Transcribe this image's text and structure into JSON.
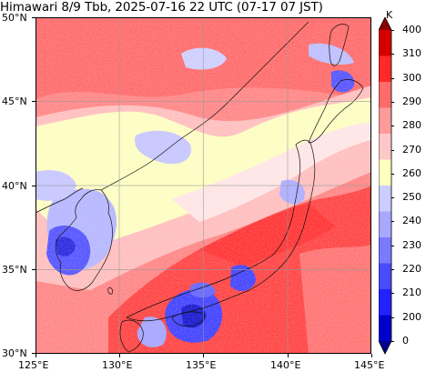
{
  "title": "Himawari 8/9 Tbb, 2025-07-16 22 UTC (07-17 07 JST)",
  "map": {
    "lon_range": [
      125,
      145
    ],
    "lat_range": [
      30,
      50
    ],
    "lon_ticks": [
      "125°E",
      "130°E",
      "135°E",
      "140°E",
      "145°E"
    ],
    "lat_ticks": [
      "30°N",
      "35°N",
      "40°N",
      "45°N",
      "50°N"
    ],
    "gridlines": true,
    "coastlines": true
  },
  "colorbar": {
    "unit": "K",
    "levels": [
      "0",
      "200",
      "210",
      "220",
      "230",
      "240",
      "250",
      "260",
      "270",
      "280",
      "290",
      "300",
      "310",
      "400"
    ],
    "colors": [
      "#00008b",
      "#0000cd",
      "#2222ff",
      "#4a4aff",
      "#7a7aff",
      "#a8a8ff",
      "#ccccff",
      "#ffffc0",
      "#ffc8c8",
      "#ff9a9a",
      "#ff6a6a",
      "#ff2a2a",
      "#d40000",
      "#8b0000"
    ],
    "extend": "both"
  }
}
